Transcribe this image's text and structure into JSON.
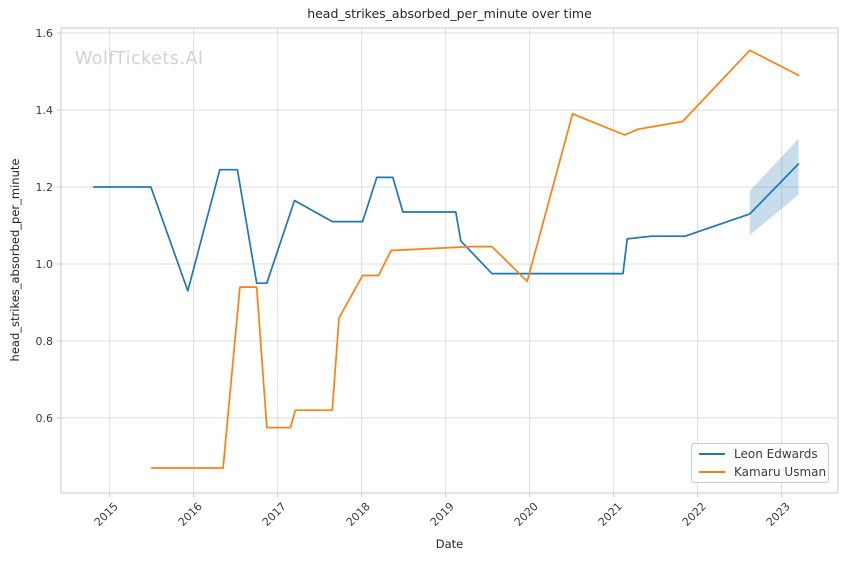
{
  "chart_data": {
    "type": "line",
    "title": "head_strikes_absorbed_per_minute over time",
    "xlabel": "Date",
    "ylabel": "head_strikes_absorbed_per_minute",
    "watermark": "WolfTickets.AI",
    "grid": true,
    "legend_position": "lower right",
    "xlim": [
      2014.42,
      2023.67
    ],
    "ylim": [
      0.405,
      1.613
    ],
    "xticks": [
      2015,
      2016,
      2017,
      2018,
      2019,
      2020,
      2021,
      2022,
      2023
    ],
    "xtick_labels": [
      "2015",
      "2016",
      "2017",
      "2018",
      "2019",
      "2020",
      "2021",
      "2022",
      "2023"
    ],
    "yticks": [
      0.6,
      0.8,
      1.0,
      1.2,
      1.4,
      1.6
    ],
    "ytick_labels": [
      "0.6",
      "0.8",
      "1.0",
      "1.2",
      "1.4",
      "1.6"
    ],
    "series": [
      {
        "name": "Leon Edwards",
        "color": "#1f77b4",
        "points": [
          [
            2014.81,
            1.2
          ],
          [
            2015.49,
            1.2
          ],
          [
            2015.93,
            0.93
          ],
          [
            2016.31,
            1.245
          ],
          [
            2016.52,
            1.245
          ],
          [
            2016.75,
            0.95
          ],
          [
            2016.87,
            0.95
          ],
          [
            2017.2,
            1.165
          ],
          [
            2017.65,
            1.11
          ],
          [
            2018.01,
            1.11
          ],
          [
            2018.18,
            1.225
          ],
          [
            2018.37,
            1.225
          ],
          [
            2018.49,
            1.135
          ],
          [
            2019.12,
            1.135
          ],
          [
            2019.18,
            1.06
          ],
          [
            2019.55,
            0.975
          ],
          [
            2021.11,
            0.975
          ],
          [
            2021.16,
            1.065
          ],
          [
            2021.45,
            1.072
          ],
          [
            2021.85,
            1.072
          ],
          [
            2022.62,
            1.13
          ],
          [
            2023.2,
            1.26
          ]
        ]
      },
      {
        "name": "Kamaru Usman",
        "color": "#ff7f0e",
        "points": [
          [
            2015.5,
            0.47
          ],
          [
            2016.35,
            0.47
          ],
          [
            2016.55,
            0.94
          ],
          [
            2016.75,
            0.94
          ],
          [
            2016.87,
            0.575
          ],
          [
            2017.15,
            0.575
          ],
          [
            2017.21,
            0.62
          ],
          [
            2017.65,
            0.62
          ],
          [
            2017.73,
            0.86
          ],
          [
            2018.01,
            0.97
          ],
          [
            2018.2,
            0.97
          ],
          [
            2018.35,
            1.035
          ],
          [
            2019.3,
            1.045
          ],
          [
            2019.55,
            1.045
          ],
          [
            2019.97,
            0.955
          ],
          [
            2020.51,
            1.39
          ],
          [
            2021.13,
            1.335
          ],
          [
            2021.29,
            1.35
          ],
          [
            2021.82,
            1.37
          ],
          [
            2022.62,
            1.555
          ],
          [
            2023.2,
            1.49
          ]
        ]
      }
    ],
    "confidence_band": {
      "series": "Leon Edwards",
      "color": "#1f77b4",
      "opacity": 0.25,
      "x": [
        2022.62,
        2023.2
      ],
      "lower": [
        1.075,
        1.18
      ],
      "upper": [
        1.19,
        1.325
      ]
    }
  },
  "legend": {
    "items": [
      {
        "label": "Leon Edwards",
        "color": "#1f77b4"
      },
      {
        "label": "Kamaru Usman",
        "color": "#ff7f0e"
      }
    ]
  }
}
